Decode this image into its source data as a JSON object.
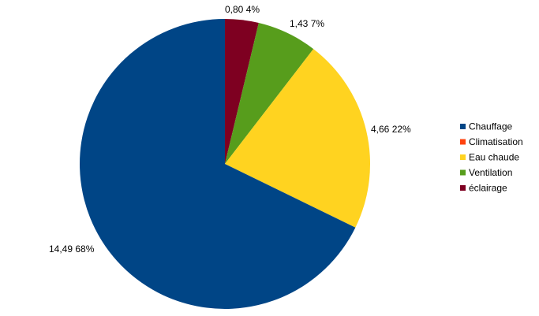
{
  "chart_data": {
    "type": "pie",
    "title": "",
    "categories": [
      "Chauffage",
      "Climatisation",
      "Eau chaude",
      "Ventilation",
      "éclairage"
    ],
    "values": [
      14.49,
      0,
      4.66,
      1.43,
      0.8
    ],
    "value_labels": [
      "14,49",
      "",
      "4,66",
      "1,43",
      "0,80"
    ],
    "percent_labels": [
      "68%",
      "",
      "22%",
      "7%",
      "4%"
    ],
    "colors": [
      "#004586",
      "#ff420e",
      "#ffd320",
      "#579d1c",
      "#7e0021"
    ],
    "legend_placement": "right"
  }
}
